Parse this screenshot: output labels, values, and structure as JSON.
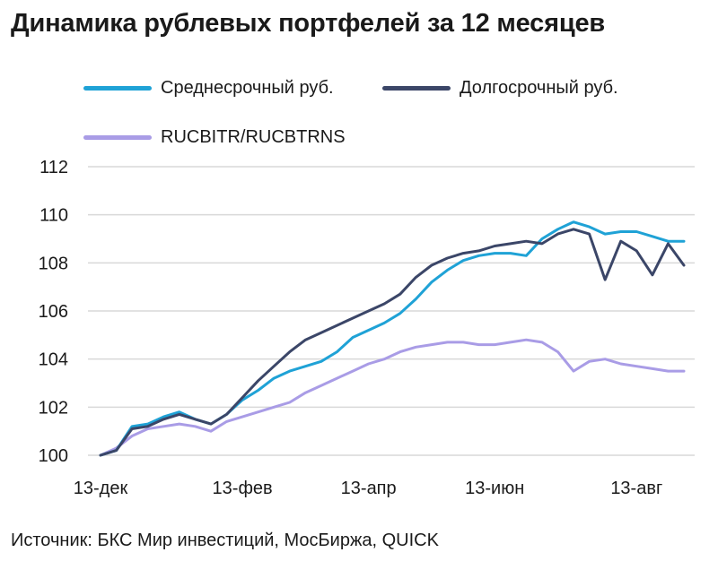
{
  "title": "Динамика рублевых портфелей за 12 месяцев",
  "source": "Источник: БКС Мир инвестиций, МосБиржа, QUICK",
  "chart_data": {
    "type": "line",
    "title": "Динамика рублевых портфелей за 12 месяцев",
    "xlabel": "",
    "ylabel": "",
    "x_ticks": [
      "13-дек",
      "13-фев",
      "13-апр",
      "13-июн",
      "13-авг"
    ],
    "y_ticks": [
      "100",
      "102",
      "104",
      "106",
      "108",
      "110",
      "112"
    ],
    "ylim": [
      100,
      112
    ],
    "x_range": [
      "13-дек",
      "конец авг"
    ],
    "grid": "horizontal",
    "legend_position": "top",
    "x": [
      "13-дек",
      "20-дек",
      "27-дек",
      "03-янв",
      "10-янв",
      "17-янв",
      "24-янв",
      "31-янв",
      "07-фев",
      "13-фев",
      "20-фев",
      "27-фев",
      "06-мар",
      "13-мар",
      "20-мар",
      "27-мар",
      "03-апр",
      "13-апр",
      "20-апр",
      "27-апр",
      "04-май",
      "13-май",
      "20-май",
      "27-май",
      "03-июн",
      "13-июн",
      "20-июн",
      "27-июн",
      "04-июл",
      "13-июл",
      "20-июл",
      "27-июл",
      "03-авг",
      "07-авг",
      "13-авг",
      "20-авг",
      "27-авг",
      "31-авг"
    ],
    "series": [
      {
        "name": "Среднесрочный руб.",
        "color": "#1fa2d6",
        "values": [
          100.0,
          100.2,
          101.2,
          101.3,
          101.6,
          101.8,
          101.5,
          101.3,
          101.7,
          102.3,
          102.7,
          103.2,
          103.5,
          103.7,
          103.9,
          104.3,
          104.9,
          105.2,
          105.5,
          105.9,
          106.5,
          107.2,
          107.7,
          108.1,
          108.3,
          108.4,
          108.4,
          108.3,
          109.0,
          109.4,
          109.7,
          109.5,
          109.2,
          109.3,
          109.3,
          109.1,
          108.9,
          108.9
        ]
      },
      {
        "name": "Долгосрочный руб.",
        "color": "#3b4668",
        "values": [
          100.0,
          100.2,
          101.1,
          101.2,
          101.5,
          101.7,
          101.5,
          101.3,
          101.7,
          102.4,
          103.1,
          103.7,
          104.3,
          104.8,
          105.1,
          105.4,
          105.7,
          106.0,
          106.3,
          106.7,
          107.4,
          107.9,
          108.2,
          108.4,
          108.5,
          108.7,
          108.8,
          108.9,
          108.8,
          109.2,
          109.4,
          109.2,
          107.3,
          108.9,
          108.5,
          107.5,
          108.8,
          107.9
        ]
      },
      {
        "name": "RUCBITR/RUCBTRNS",
        "color": "#a99ce6",
        "values": [
          100.0,
          100.3,
          100.8,
          101.1,
          101.2,
          101.3,
          101.2,
          101.0,
          101.4,
          101.6,
          101.8,
          102.0,
          102.2,
          102.6,
          102.9,
          103.2,
          103.5,
          103.8,
          104.0,
          104.3,
          104.5,
          104.6,
          104.7,
          104.7,
          104.6,
          104.6,
          104.7,
          104.8,
          104.7,
          104.3,
          103.5,
          103.9,
          104.0,
          103.8,
          103.7,
          103.6,
          103.5,
          103.5
        ]
      }
    ]
  }
}
